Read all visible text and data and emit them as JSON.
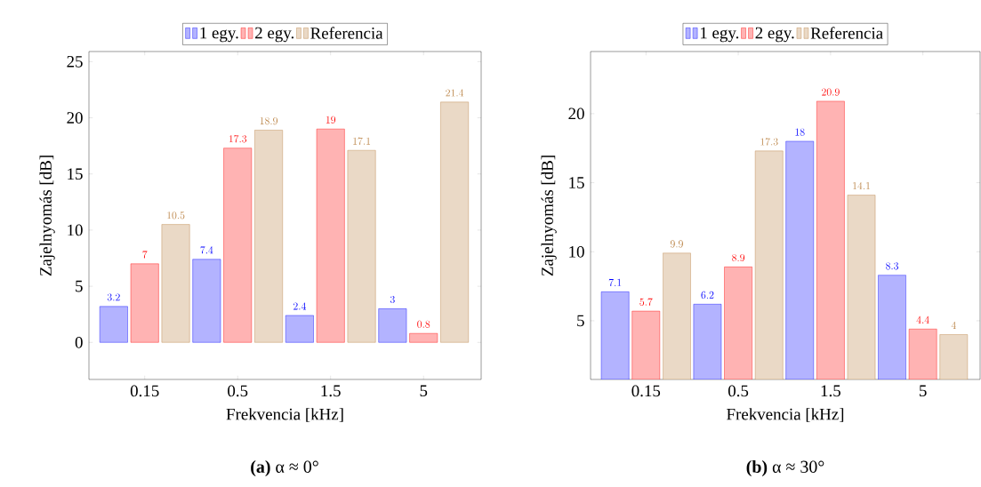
{
  "chart_data": [
    {
      "type": "bar",
      "subtitle": "**(a)** α ≈ 0°",
      "xlabel": "Frekvencia [kHz]",
      "ylabel": "Zajelnyomás [dB]",
      "categories": [
        "0.15",
        "0.5",
        "1.5",
        "5"
      ],
      "series": [
        {
          "name": "1 egy.",
          "color": "#b3b3ff",
          "values": [
            3.2,
            7.4,
            2.4,
            3
          ]
        },
        {
          "name": "2 egy.",
          "color": "#ffb3b3",
          "values": [
            7,
            17.3,
            19,
            0.8
          ]
        },
        {
          "name": "Referencia",
          "color": "#ead9c6",
          "values": [
            10.5,
            18.9,
            17.1,
            21.4
          ]
        }
      ],
      "ylim": [
        -3.3,
        25.9
      ],
      "yticks": [
        0,
        5,
        10,
        15,
        20,
        25
      ],
      "data_labels": true,
      "legend": "top"
    },
    {
      "type": "bar",
      "subtitle": "**(b)** α ≈ 30°",
      "xlabel": "Frekvencia [kHz]",
      "ylabel": "Zajelnyomás [dB]",
      "categories": [
        "0.15",
        "0.5",
        "1.5",
        "5"
      ],
      "series": [
        {
          "name": "1 egy.",
          "color": "#b3b3ff",
          "values": [
            7.1,
            6.2,
            18,
            8.3
          ]
        },
        {
          "name": "2 egy.",
          "color": "#ffb3b3",
          "values": [
            5.7,
            8.9,
            20.9,
            4.4
          ]
        },
        {
          "name": "Referencia",
          "color": "#ead9c6",
          "values": [
            9.9,
            17.3,
            14.1,
            4
          ]
        }
      ],
      "ylim": [
        0.75,
        24.5
      ],
      "yticks": [
        5,
        10,
        15,
        20
      ],
      "data_labels": true,
      "legend": "top"
    }
  ]
}
